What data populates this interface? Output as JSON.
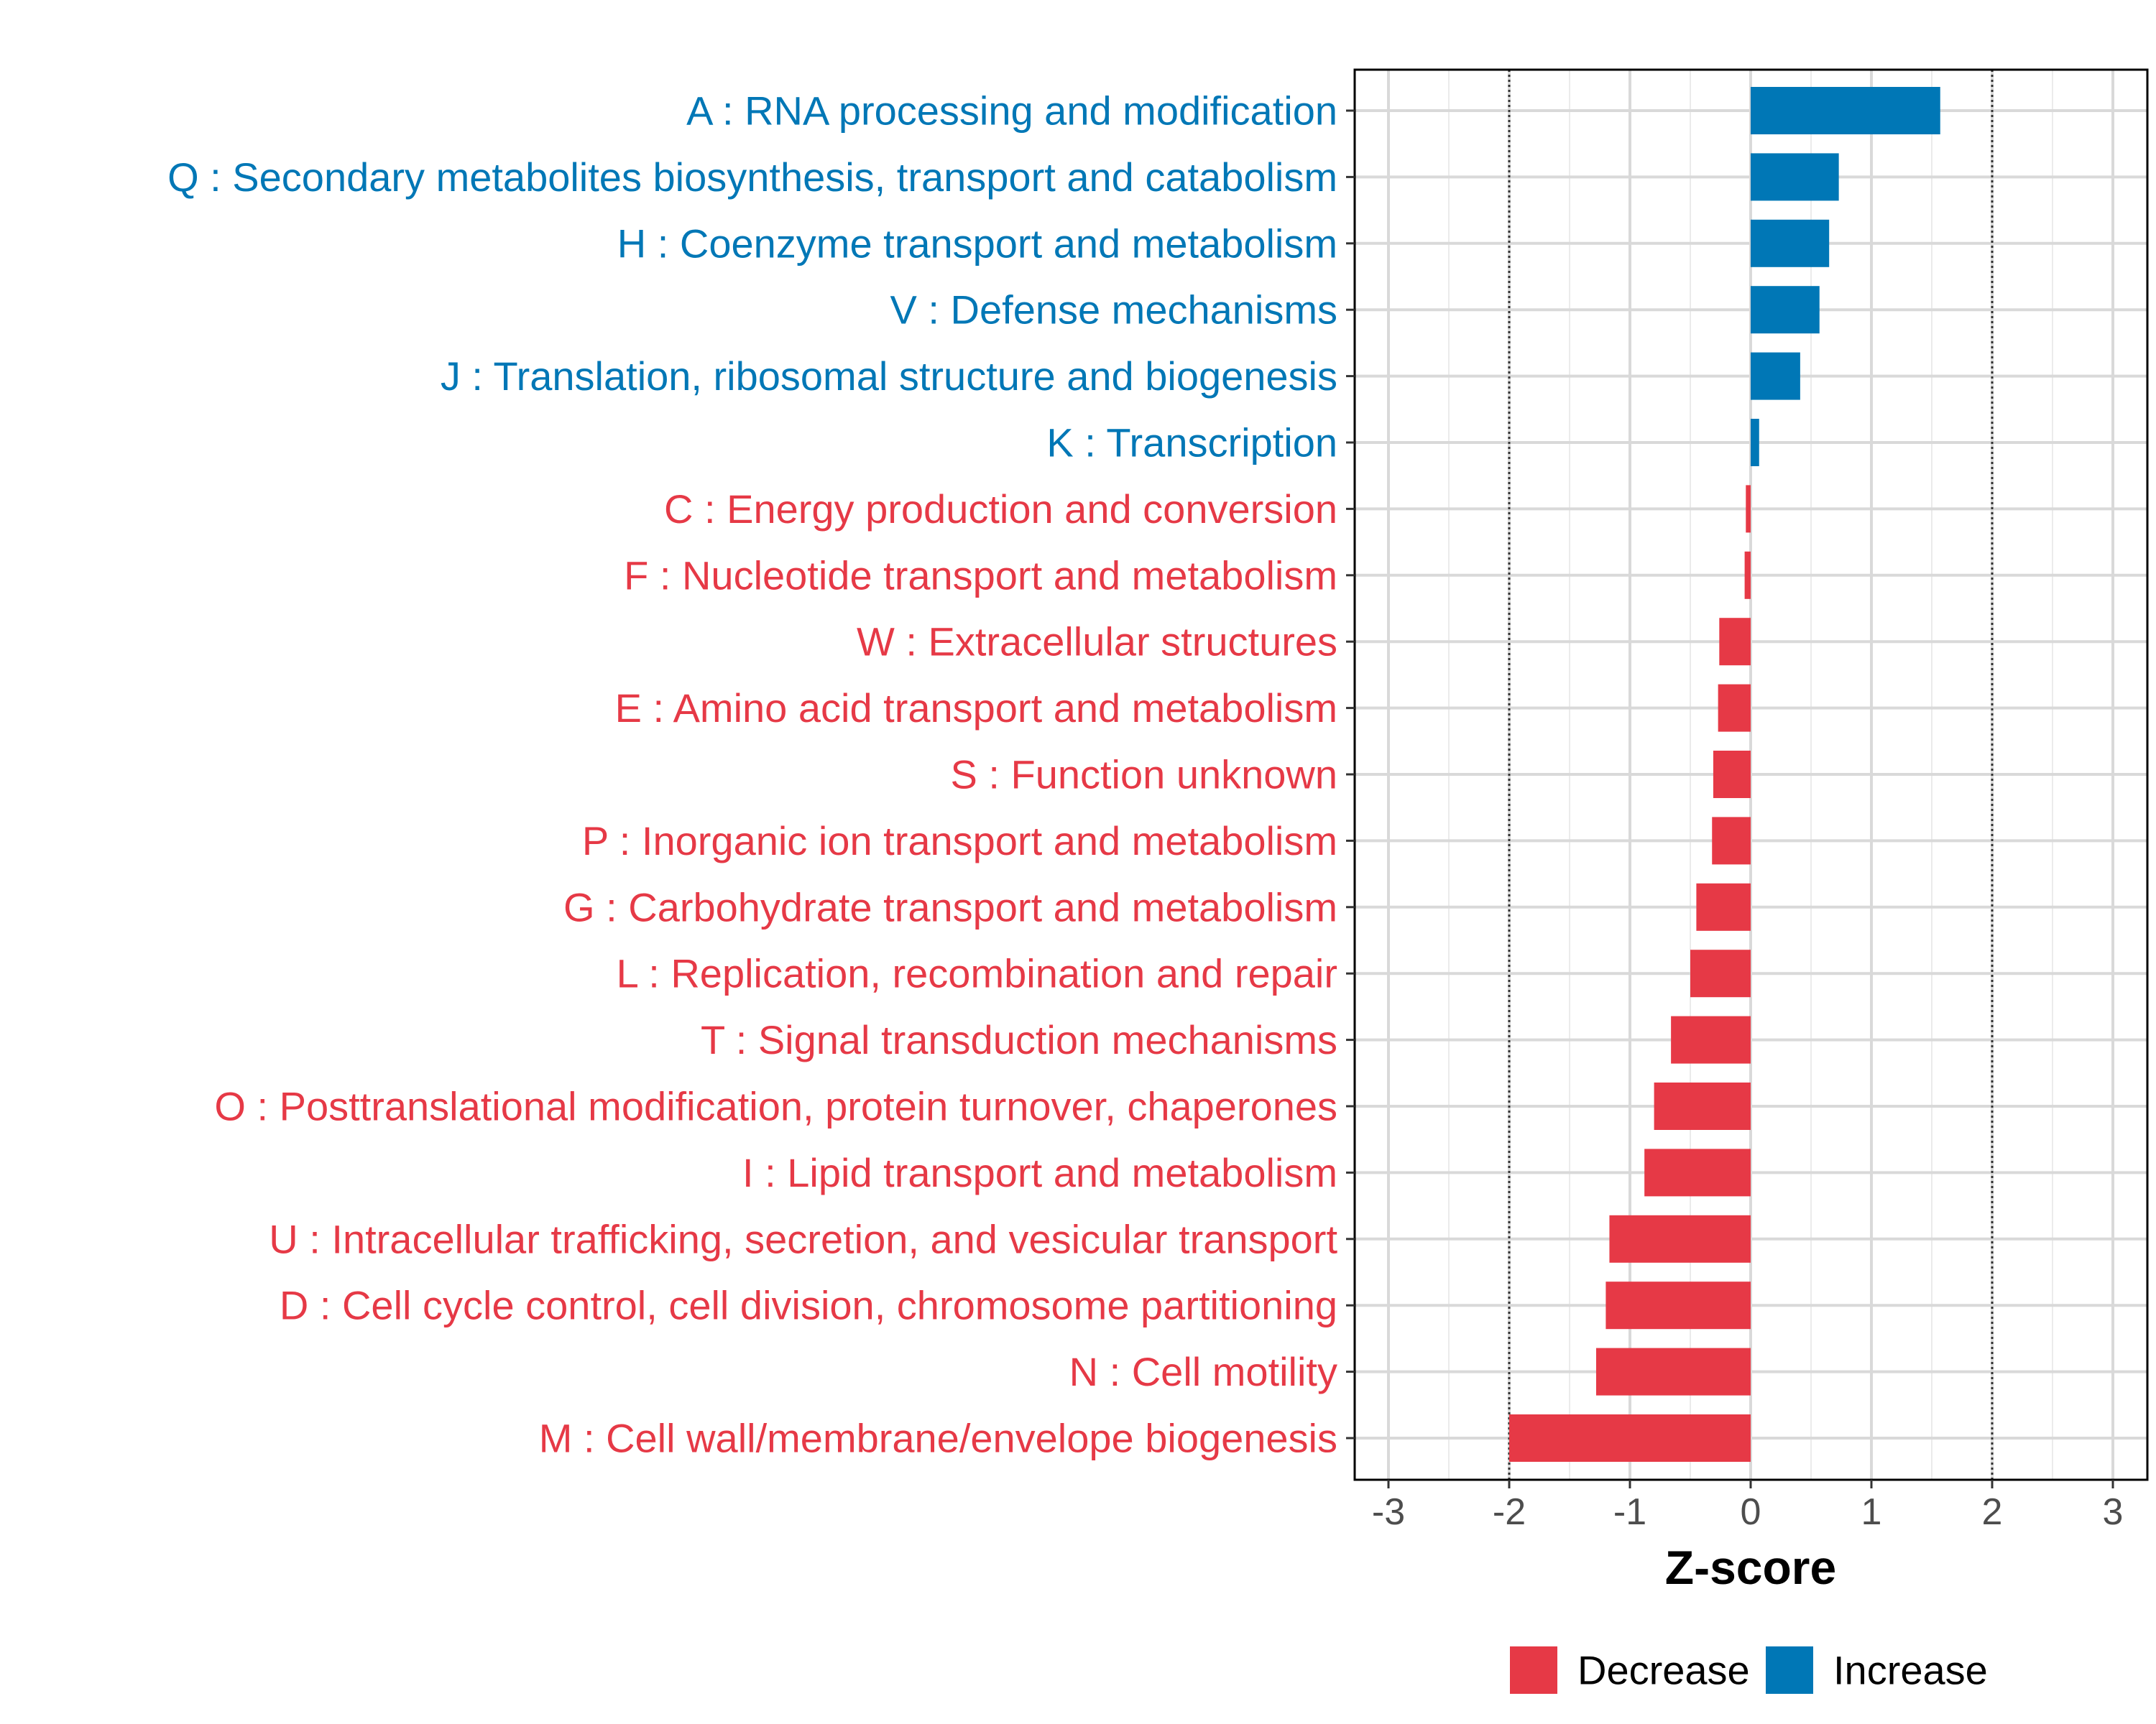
{
  "chart_data": {
    "type": "bar",
    "orientation": "horizontal",
    "title": "",
    "xlabel": "Z-score",
    "ylabel": "",
    "xlim": [
      -3.3,
      3.3
    ],
    "xticks": [
      -3,
      -2,
      -1,
      0,
      1,
      2,
      3
    ],
    "reference_lines": [
      -2,
      2
    ],
    "grid": true,
    "legend_position": "bottom",
    "colors": {
      "Decrease": "#e63946",
      "Increase": "#0077b6"
    },
    "legend": [
      {
        "name": "Decrease",
        "color": "#e63946"
      },
      {
        "name": "Increase",
        "color": "#0077b6"
      }
    ],
    "categories": [
      "A : RNA processing and modification",
      "Q : Secondary metabolites biosynthesis, transport and catabolism",
      "H : Coenzyme transport and metabolism",
      "V : Defense mechanisms",
      "J : Translation, ribosomal structure and biogenesis",
      "K : Transcription",
      "C : Energy production and conversion",
      "F : Nucleotide transport and metabolism",
      "W : Extracellular structures",
      "E : Amino acid transport and metabolism",
      "S : Function unknown",
      "P : Inorganic ion transport and metabolism",
      "G : Carbohydrate transport and metabolism",
      "L : Replication, recombination and repair",
      "T : Signal transduction mechanisms",
      "O : Posttranslational modification, protein turnover, chaperones",
      "I : Lipid transport and metabolism",
      "U : Intracellular trafficking, secretion, and vesicular transport",
      "D : Cell cycle control, cell division, chromosome partitioning",
      "N : Cell motility",
      "M : Cell wall/membrane/envelope biogenesis"
    ],
    "values": [
      1.57,
      0.73,
      0.65,
      0.57,
      0.41,
      0.07,
      -0.04,
      -0.05,
      -0.26,
      -0.27,
      -0.31,
      -0.32,
      -0.45,
      -0.5,
      -0.66,
      -0.8,
      -0.88,
      -1.17,
      -1.2,
      -1.28,
      -2.0
    ],
    "groups": [
      "Increase",
      "Increase",
      "Increase",
      "Increase",
      "Increase",
      "Increase",
      "Decrease",
      "Decrease",
      "Decrease",
      "Decrease",
      "Decrease",
      "Decrease",
      "Decrease",
      "Decrease",
      "Decrease",
      "Decrease",
      "Decrease",
      "Decrease",
      "Decrease",
      "Decrease",
      "Decrease"
    ]
  }
}
